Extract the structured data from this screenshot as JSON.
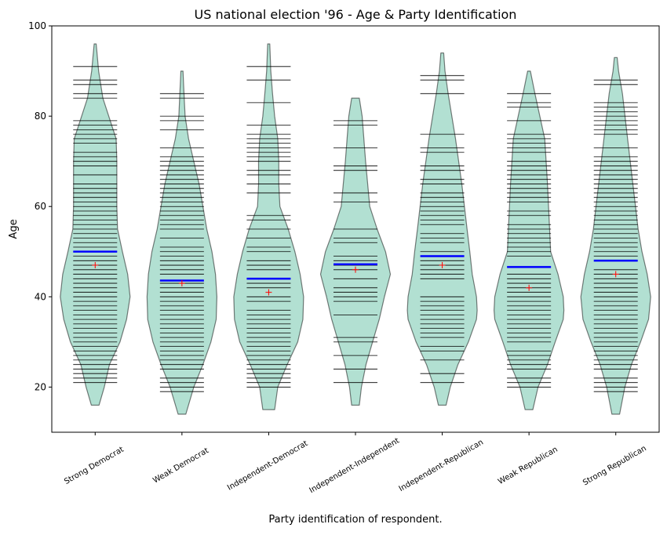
{
  "chart_data": {
    "type": "violin",
    "title": "US national election '96 - Age & Party Identification",
    "xlabel": "Party identification of respondent.",
    "ylabel": "Age",
    "ylim": [
      10,
      100
    ],
    "yticks": [
      20,
      40,
      60,
      80,
      100
    ],
    "grid": false,
    "colors": {
      "fill": "#66c2a5",
      "fill_alpha": 0.5,
      "edge": "#000000",
      "bean_line": "#000000",
      "median_line": "#0000ff",
      "mean_marker": "#ff0000"
    },
    "categories": [
      "Strong Democrat",
      "Weak Democrat",
      "Independent-Democrat",
      "Independent-Independent",
      "Independent-Republican",
      "Weak Republican",
      "Strong Republican"
    ],
    "groups": [
      {
        "median": 50,
        "mean": 47,
        "ages": [
          91,
          88,
          87,
          85,
          84,
          79,
          78,
          77,
          76,
          75,
          74,
          72,
          71,
          70,
          69,
          67,
          65,
          64,
          63,
          62,
          61,
          60,
          59,
          58,
          57,
          56,
          55,
          54,
          53,
          52,
          51,
          49,
          48,
          47,
          46,
          45,
          44,
          43,
          42,
          41,
          40,
          39,
          38,
          37,
          36,
          35,
          34,
          33,
          32,
          31,
          30,
          29,
          28,
          27,
          26,
          25,
          24,
          23,
          22,
          21
        ],
        "density": [
          [
            16,
            0.11
          ],
          [
            20,
            0.26
          ],
          [
            25,
            0.41
          ],
          [
            30,
            0.71
          ],
          [
            35,
            0.9
          ],
          [
            40,
            1.0
          ],
          [
            45,
            0.93
          ],
          [
            50,
            0.78
          ],
          [
            55,
            0.64
          ],
          [
            60,
            0.62
          ],
          [
            70,
            0.62
          ],
          [
            75,
            0.6
          ],
          [
            84,
            0.22
          ],
          [
            90,
            0.1
          ],
          [
            96,
            0.03
          ]
        ]
      },
      {
        "median": 43.6,
        "mean": 43,
        "ages": [
          85,
          84,
          80,
          79,
          77,
          73,
          71,
          70,
          69,
          68,
          67,
          66,
          65,
          64,
          63,
          62,
          61,
          60,
          59,
          58,
          57,
          56,
          55,
          53,
          51,
          50,
          49,
          48,
          47,
          46,
          45,
          43,
          42,
          41,
          40,
          39,
          38,
          37,
          36,
          35,
          34,
          33,
          32,
          31,
          30,
          29,
          28,
          27,
          26,
          25,
          24,
          22,
          21,
          20,
          19
        ],
        "density": [
          [
            14,
            0.11
          ],
          [
            20,
            0.34
          ],
          [
            25,
            0.6
          ],
          [
            30,
            0.83
          ],
          [
            35,
            0.98
          ],
          [
            40,
            1.0
          ],
          [
            45,
            0.96
          ],
          [
            50,
            0.86
          ],
          [
            55,
            0.71
          ],
          [
            60,
            0.6
          ],
          [
            65,
            0.49
          ],
          [
            70,
            0.34
          ],
          [
            75,
            0.19
          ],
          [
            80,
            0.09
          ],
          [
            85,
            0.06
          ],
          [
            90,
            0.03
          ]
        ]
      },
      {
        "median": 44,
        "mean": 41,
        "ages": [
          91,
          88,
          83,
          78,
          76,
          75,
          74,
          73,
          72,
          71,
          70,
          68,
          67,
          65,
          63,
          58,
          57,
          55,
          53,
          51,
          50,
          48,
          47,
          46,
          43,
          42,
          40,
          39,
          37,
          36,
          35,
          34,
          33,
          32,
          31,
          30,
          29,
          28,
          27,
          26,
          25,
          24,
          23,
          22,
          21,
          20
        ],
        "density": [
          [
            15,
            0.17
          ],
          [
            20,
            0.26
          ],
          [
            25,
            0.53
          ],
          [
            30,
            0.83
          ],
          [
            35,
            0.98
          ],
          [
            40,
            1.0
          ],
          [
            45,
            0.9
          ],
          [
            50,
            0.75
          ],
          [
            55,
            0.56
          ],
          [
            60,
            0.32
          ],
          [
            65,
            0.29
          ],
          [
            70,
            0.29
          ],
          [
            75,
            0.26
          ],
          [
            80,
            0.17
          ],
          [
            85,
            0.11
          ],
          [
            90,
            0.06
          ],
          [
            96,
            0.03
          ]
        ]
      },
      {
        "median": 47.2,
        "mean": 46,
        "ages": [
          79,
          78,
          73,
          69,
          68,
          63,
          61,
          55,
          53,
          52,
          49,
          48,
          47,
          46,
          44,
          42,
          41,
          40,
          39,
          36,
          31,
          30,
          27,
          24,
          21
        ],
        "density": [
          [
            16,
            0.11
          ],
          [
            20,
            0.17
          ],
          [
            25,
            0.3
          ],
          [
            30,
            0.49
          ],
          [
            35,
            0.68
          ],
          [
            40,
            0.83
          ],
          [
            45,
            1.0
          ],
          [
            50,
            0.86
          ],
          [
            55,
            0.62
          ],
          [
            60,
            0.41
          ],
          [
            70,
            0.29
          ],
          [
            80,
            0.19
          ],
          [
            84,
            0.11
          ]
        ]
      },
      {
        "median": 49,
        "mean": 47,
        "ages": [
          89,
          88,
          85,
          76,
          73,
          72,
          69,
          68,
          66,
          65,
          63,
          62,
          61,
          60,
          59,
          58,
          57,
          56,
          54,
          53,
          52,
          50,
          48,
          47,
          46,
          45,
          44,
          40,
          39,
          38,
          37,
          36,
          35,
          34,
          33,
          32,
          31,
          29,
          28,
          26,
          23,
          21
        ],
        "density": [
          [
            16,
            0.11
          ],
          [
            20,
            0.23
          ],
          [
            25,
            0.45
          ],
          [
            30,
            0.75
          ],
          [
            35,
            0.98
          ],
          [
            37,
            1.0
          ],
          [
            40,
            0.98
          ],
          [
            45,
            0.86
          ],
          [
            50,
            0.79
          ],
          [
            55,
            0.71
          ],
          [
            65,
            0.56
          ],
          [
            75,
            0.38
          ],
          [
            85,
            0.17
          ],
          [
            90,
            0.08
          ],
          [
            94,
            0.04
          ]
        ]
      },
      {
        "median": 46.6,
        "mean": 42,
        "ages": [
          85,
          83,
          82,
          79,
          76,
          75,
          74,
          73,
          72,
          70,
          69,
          68,
          67,
          66,
          65,
          64,
          63,
          62,
          61,
          59,
          58,
          56,
          55,
          54,
          53,
          52,
          51,
          50,
          49,
          45,
          44,
          43,
          42,
          41,
          40,
          39,
          38,
          37,
          36,
          35,
          34,
          33,
          32,
          31,
          30,
          28,
          27,
          26,
          25,
          24,
          22,
          21,
          20
        ],
        "density": [
          [
            15,
            0.11
          ],
          [
            20,
            0.26
          ],
          [
            25,
            0.53
          ],
          [
            30,
            0.75
          ],
          [
            35,
            0.98
          ],
          [
            37,
            1.0
          ],
          [
            40,
            0.98
          ],
          [
            45,
            0.83
          ],
          [
            50,
            0.62
          ],
          [
            55,
            0.59
          ],
          [
            65,
            0.53
          ],
          [
            75,
            0.45
          ],
          [
            85,
            0.17
          ],
          [
            90,
            0.04
          ]
        ]
      },
      {
        "median": 48,
        "mean": 45,
        "ages": [
          88,
          87,
          83,
          82,
          81,
          80,
          79,
          78,
          77,
          76,
          73,
          71,
          70,
          69,
          68,
          67,
          66,
          65,
          64,
          63,
          62,
          61,
          60,
          59,
          58,
          57,
          56,
          55,
          54,
          53,
          52,
          51,
          50,
          49,
          46,
          45,
          44,
          43,
          42,
          41,
          40,
          39,
          38,
          37,
          36,
          35,
          34,
          33,
          32,
          31,
          30,
          29,
          28,
          27,
          26,
          25,
          24,
          22,
          21,
          20,
          19
        ],
        "density": [
          [
            14,
            0.11
          ],
          [
            20,
            0.26
          ],
          [
            25,
            0.45
          ],
          [
            30,
            0.71
          ],
          [
            35,
            0.94
          ],
          [
            40,
            1.0
          ],
          [
            45,
            0.9
          ],
          [
            50,
            0.75
          ],
          [
            55,
            0.64
          ],
          [
            65,
            0.49
          ],
          [
            75,
            0.34
          ],
          [
            85,
            0.19
          ],
          [
            90,
            0.08
          ],
          [
            93,
            0.04
          ]
        ]
      }
    ]
  }
}
